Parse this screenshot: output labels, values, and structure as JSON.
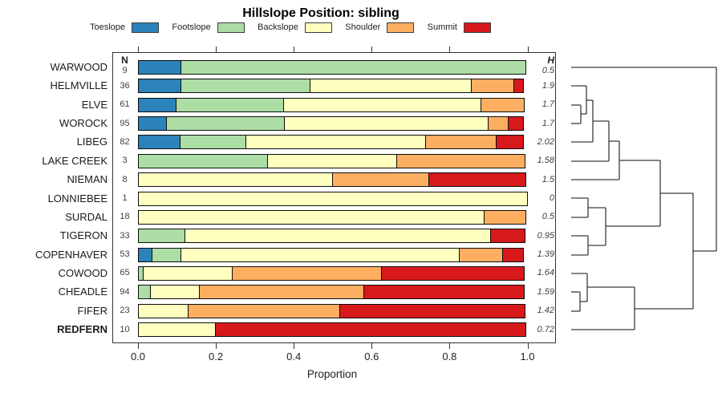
{
  "title": "Hillslope Position: sibling",
  "columns": {
    "n_header": "N",
    "h_header": "H"
  },
  "x_axis": {
    "label": "Proportion",
    "ticks": [
      "0.0",
      "0.2",
      "0.4",
      "0.6",
      "0.8",
      "1.0"
    ]
  },
  "legend": {
    "items": [
      {
        "label": "Toeslope",
        "color": "#2B83BA"
      },
      {
        "label": "Footslope",
        "color": "#ABDDA4"
      },
      {
        "label": "Backslope",
        "color": "#FFFFBF"
      },
      {
        "label": "Shoulder",
        "color": "#FDAE61"
      },
      {
        "label": "Summit",
        "color": "#D7191C"
      }
    ]
  },
  "chart_data": {
    "type": "bar",
    "orientation": "horizontal-stacked",
    "title": "Hillslope Position: sibling",
    "xlabel": "Proportion",
    "xlim": [
      0,
      1
    ],
    "categories": [
      "Toeslope",
      "Footslope",
      "Backslope",
      "Shoulder",
      "Summit"
    ],
    "colors": [
      "#2B83BA",
      "#ABDDA4",
      "#FFFFBF",
      "#FDAE61",
      "#D7191C"
    ],
    "rows": [
      {
        "name": "WARWOOD",
        "n": 9,
        "h": "0.5",
        "bold": false,
        "values": [
          0.111,
          0.889,
          0,
          0,
          0
        ]
      },
      {
        "name": "HELMVILLE",
        "n": 36,
        "h": "1.9",
        "bold": false,
        "values": [
          0.111,
          0.333,
          0.417,
          0.111,
          0.028
        ]
      },
      {
        "name": "ELVE",
        "n": 61,
        "h": "1.7",
        "bold": false,
        "values": [
          0.098,
          0.279,
          0.508,
          0.115,
          0
        ]
      },
      {
        "name": "WOROCK",
        "n": 95,
        "h": "1.7",
        "bold": false,
        "values": [
          0.074,
          0.305,
          0.526,
          0.053,
          0.042
        ]
      },
      {
        "name": "LIBEG",
        "n": 82,
        "h": "2.02",
        "bold": false,
        "values": [
          0.11,
          0.171,
          0.463,
          0.183,
          0.073
        ]
      },
      {
        "name": "LAKE CREEK",
        "n": 3,
        "h": "1.58",
        "bold": false,
        "values": [
          0,
          0.333,
          0.334,
          0.333,
          0
        ]
      },
      {
        "name": "NIEMAN",
        "n": 8,
        "h": "1.5",
        "bold": false,
        "values": [
          0,
          0,
          0.5,
          0.25,
          0.25
        ]
      },
      {
        "name": "LONNIEBEE",
        "n": 1,
        "h": "0",
        "bold": false,
        "values": [
          0,
          0,
          1,
          0,
          0
        ]
      },
      {
        "name": "SURDAL",
        "n": 18,
        "h": "0.5",
        "bold": false,
        "values": [
          0,
          0,
          0.889,
          0.111,
          0
        ]
      },
      {
        "name": "TIGERON",
        "n": 33,
        "h": "0.95",
        "bold": false,
        "values": [
          0,
          0.121,
          0.788,
          0,
          0.091
        ]
      },
      {
        "name": "COPENHAVER",
        "n": 53,
        "h": "1.39",
        "bold": false,
        "values": [
          0.038,
          0.075,
          0.717,
          0.113,
          0.057
        ]
      },
      {
        "name": "COWOOD",
        "n": 65,
        "h": "1.64",
        "bold": false,
        "values": [
          0,
          0.015,
          0.231,
          0.385,
          0.369
        ]
      },
      {
        "name": "CHEADLE",
        "n": 94,
        "h": "1.59",
        "bold": false,
        "values": [
          0,
          0.032,
          0.128,
          0.426,
          0.414
        ]
      },
      {
        "name": "FIFER",
        "n": 23,
        "h": "1.42",
        "bold": false,
        "values": [
          0,
          0,
          0.13,
          0.392,
          0.478
        ]
      },
      {
        "name": "REDFERN",
        "n": 10,
        "h": "0.72",
        "bold": true,
        "values": [
          0,
          0,
          0.2,
          0,
          0.8
        ]
      }
    ],
    "dendrogram": {
      "color": "#3c3c3c",
      "segments": [
        [
          712,
          84,
          893,
          84
        ],
        [
          712,
          107,
          731,
          107
        ],
        [
          712,
          131,
          724,
          131
        ],
        [
          712,
          154,
          724,
          154
        ],
        [
          724,
          131,
          724,
          154
        ],
        [
          724,
          142,
          731,
          142
        ],
        [
          731,
          107,
          731,
          142
        ],
        [
          731,
          125,
          739,
          125
        ],
        [
          712,
          177,
          739,
          177
        ],
        [
          739,
          125,
          739,
          177
        ],
        [
          739,
          151,
          759,
          151
        ],
        [
          712,
          201,
          759,
          201
        ],
        [
          759,
          151,
          759,
          201
        ],
        [
          759,
          176,
          772,
          176
        ],
        [
          712,
          224,
          772,
          224
        ],
        [
          772,
          176,
          772,
          224
        ],
        [
          772,
          200,
          823,
          200
        ],
        [
          712,
          247,
          733,
          247
        ],
        [
          712,
          271,
          733,
          271
        ],
        [
          733,
          247,
          733,
          271
        ],
        [
          733,
          259,
          755,
          259
        ],
        [
          712,
          294,
          733,
          294
        ],
        [
          712,
          318,
          733,
          318
        ],
        [
          733,
          294,
          733,
          318
        ],
        [
          733,
          306,
          755,
          306
        ],
        [
          755,
          259,
          755,
          306
        ],
        [
          755,
          282,
          823,
          282
        ],
        [
          823,
          200,
          823,
          282
        ],
        [
          823,
          241,
          864,
          241
        ],
        [
          712,
          341,
          732,
          341
        ],
        [
          712,
          364,
          723,
          364
        ],
        [
          712,
          388,
          723,
          388
        ],
        [
          723,
          364,
          723,
          388
        ],
        [
          723,
          376,
          732,
          376
        ],
        [
          732,
          341,
          732,
          376
        ],
        [
          732,
          358,
          791,
          358
        ],
        [
          712,
          411,
          791,
          411
        ],
        [
          791,
          358,
          791,
          411
        ],
        [
          791,
          385,
          864,
          385
        ],
        [
          864,
          241,
          864,
          385
        ],
        [
          864,
          313,
          893,
          313
        ],
        [
          893,
          84,
          893,
          313
        ]
      ]
    }
  }
}
